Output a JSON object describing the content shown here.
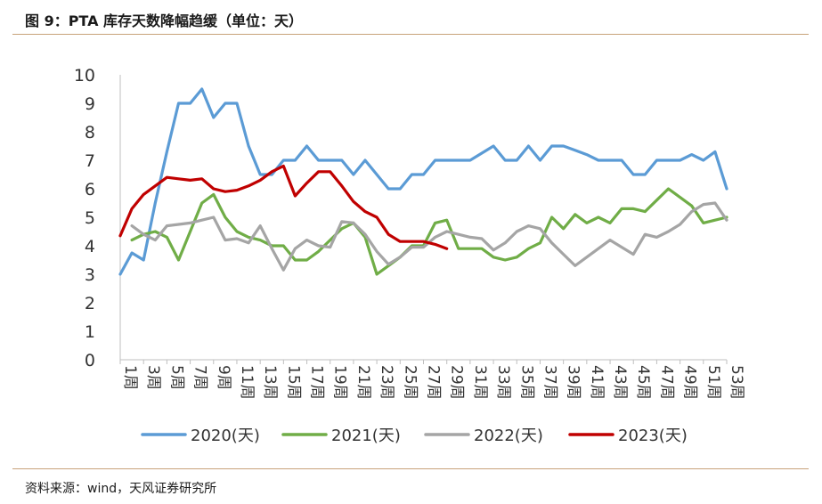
{
  "header": {
    "title": "图 9：PTA 库存天数降幅趋缓（单位：天）"
  },
  "footer": {
    "source": "资料来源：wind，天风证券研究所"
  },
  "chart_data": {
    "type": "line",
    "title": "",
    "xlabel": "",
    "ylabel": "",
    "ylim": [
      0,
      10
    ],
    "yticks": [
      0,
      1,
      2,
      3,
      4,
      5,
      6,
      7,
      8,
      9,
      10
    ],
    "xlim": [
      1,
      53
    ],
    "x_tick_labels": [
      "1周",
      "3周",
      "5周",
      "7周",
      "9周",
      "11周",
      "13周",
      "15周",
      "17周",
      "19周",
      "21周",
      "23周",
      "25周",
      "27周",
      "29周",
      "31周",
      "33周",
      "35周",
      "37周",
      "39周",
      "41周",
      "43周",
      "45周",
      "47周",
      "49周",
      "51周",
      "53周"
    ],
    "grid": false,
    "legend": "bottom",
    "series": [
      {
        "name": "2020(天)",
        "color": "#5b9bd5",
        "x": [
          1,
          2,
          3,
          4,
          5,
          6,
          7,
          8,
          9,
          10,
          11,
          12,
          13,
          14,
          15,
          16,
          17,
          18,
          19,
          20,
          21,
          22,
          23,
          24,
          25,
          26,
          27,
          28,
          29,
          30,
          31,
          32,
          33,
          34,
          35,
          36,
          37,
          38,
          39,
          40,
          41,
          42,
          43,
          44,
          45,
          46,
          47,
          48,
          49,
          50,
          51,
          52,
          53
        ],
        "values": [
          3.0,
          3.75,
          3.5,
          5.5,
          7.3,
          9.0,
          9.0,
          9.5,
          8.5,
          9.0,
          9.0,
          7.5,
          6.5,
          6.5,
          7.0,
          7.0,
          7.5,
          7.0,
          7.0,
          7.0,
          6.5,
          7.0,
          6.5,
          6.0,
          6.0,
          6.5,
          6.5,
          7.0,
          7.0,
          7.0,
          7.0,
          7.25,
          7.5,
          7.0,
          7.0,
          7.5,
          7.0,
          7.5,
          7.5,
          7.35,
          7.2,
          7.0,
          7.0,
          7.0,
          6.5,
          6.5,
          7.0,
          7.0,
          7.0,
          7.2,
          7.0,
          7.3,
          6.0
        ]
      },
      {
        "name": "2021(天)",
        "color": "#70ad47",
        "x": [
          2,
          3,
          4,
          5,
          6,
          7,
          8,
          9,
          10,
          11,
          12,
          13,
          14,
          15,
          16,
          17,
          18,
          19,
          20,
          21,
          22,
          23,
          24,
          25,
          26,
          27,
          28,
          29,
          30,
          31,
          32,
          33,
          34,
          35,
          36,
          37,
          38,
          39,
          40,
          41,
          42,
          43,
          44,
          45,
          46,
          47,
          48,
          49,
          50,
          51,
          52,
          53
        ],
        "values": [
          4.2,
          4.4,
          4.5,
          4.3,
          3.5,
          4.5,
          5.5,
          5.8,
          5.0,
          4.5,
          4.3,
          4.2,
          4.0,
          4.0,
          3.5,
          3.5,
          3.8,
          4.2,
          4.6,
          4.8,
          4.3,
          3.0,
          3.3,
          3.6,
          4.0,
          4.0,
          4.8,
          4.9,
          3.9,
          3.9,
          3.9,
          3.6,
          3.5,
          3.6,
          3.9,
          4.1,
          5.0,
          4.6,
          5.1,
          4.8,
          5.0,
          4.8,
          5.3,
          5.3,
          5.2,
          5.6,
          6.0,
          5.7,
          5.4,
          4.8,
          4.9,
          5.0
        ]
      },
      {
        "name": "2022(天)",
        "color": "#a5a5a5",
        "x": [
          2,
          3,
          4,
          5,
          6,
          7,
          8,
          9,
          10,
          11,
          12,
          13,
          14,
          15,
          16,
          17,
          18,
          19,
          20,
          21,
          22,
          23,
          24,
          25,
          26,
          27,
          28,
          29,
          30,
          31,
          32,
          33,
          34,
          35,
          36,
          37,
          38,
          39,
          40,
          41,
          42,
          43,
          44,
          45,
          46,
          47,
          48,
          49,
          50,
          51,
          52,
          53
        ],
        "values": [
          4.7,
          4.4,
          4.2,
          4.7,
          4.75,
          4.8,
          4.9,
          5.0,
          4.2,
          4.25,
          4.1,
          4.7,
          3.9,
          3.15,
          3.9,
          4.2,
          4.0,
          3.95,
          4.85,
          4.8,
          4.4,
          3.8,
          3.35,
          3.6,
          3.95,
          3.95,
          4.3,
          4.5,
          4.4,
          4.3,
          4.25,
          3.85,
          4.1,
          4.5,
          4.7,
          4.6,
          4.1,
          3.7,
          3.3,
          3.6,
          3.9,
          4.2,
          3.95,
          3.7,
          4.4,
          4.3,
          4.5,
          4.75,
          5.2,
          5.45,
          5.5,
          4.9
        ]
      },
      {
        "name": "2023(天)",
        "color": "#c00000",
        "x": [
          1,
          2,
          3,
          4,
          5,
          6,
          7,
          8,
          9,
          10,
          11,
          12,
          13,
          14,
          15,
          16,
          17,
          18,
          19,
          20,
          21,
          22,
          23,
          24,
          25,
          26,
          27,
          28,
          29
        ],
        "values": [
          4.35,
          5.3,
          5.8,
          6.1,
          6.4,
          6.35,
          6.3,
          6.35,
          6.0,
          5.9,
          5.95,
          6.1,
          6.3,
          6.6,
          6.8,
          5.75,
          6.2,
          6.6,
          6.6,
          6.1,
          5.55,
          5.2,
          5.0,
          4.4,
          4.15,
          4.15,
          4.15,
          4.05,
          3.9
        ]
      }
    ]
  }
}
